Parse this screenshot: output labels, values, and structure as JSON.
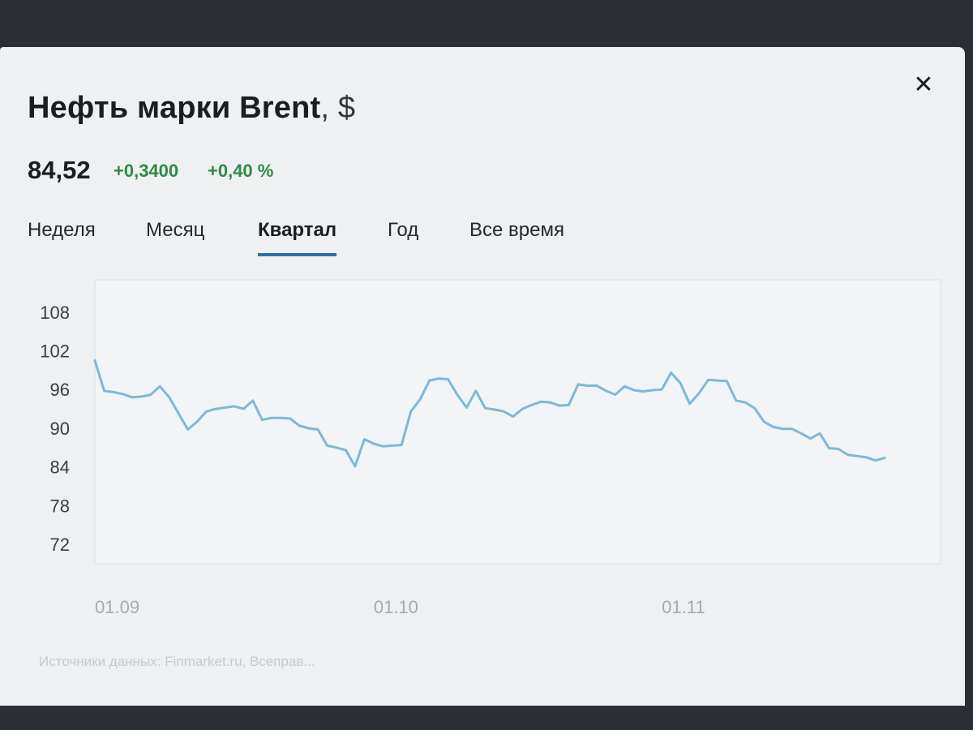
{
  "header": {
    "title": "Нефть марки Brent",
    "unit": ", $",
    "close_icon": "close-icon"
  },
  "quote": {
    "price": "84,52",
    "change_abs": "+0,3400",
    "change_pct": "+0,40 %",
    "positive_color": "#2d8a45"
  },
  "tabs": [
    {
      "label": "Неделя",
      "active": false
    },
    {
      "label": "Месяц",
      "active": false
    },
    {
      "label": "Квартал",
      "active": true
    },
    {
      "label": "Год",
      "active": false
    },
    {
      "label": "Все время",
      "active": false
    }
  ],
  "accent_color": "#2b6fb3",
  "line_color": "#7fb8d9",
  "footer": {
    "source": "Источники данных: Finmarket.ru, Всеправ..."
  },
  "chart_data": {
    "type": "line",
    "title": "",
    "xlabel": "",
    "ylabel": "",
    "ylim": [
      69,
      113
    ],
    "yticks": [
      "108",
      "102",
      "96",
      "90",
      "84",
      "78",
      "72"
    ],
    "ytick_values": [
      108,
      102,
      96,
      90,
      84,
      78,
      72
    ],
    "xticks": [
      "01.09",
      "01.10",
      "01.11"
    ],
    "xtick_days": [
      0,
      30,
      61
    ],
    "x_range_days": [
      0,
      91
    ],
    "grid": false,
    "series": [
      {
        "color": "#7fb8d9",
        "points": [
          [
            0,
            100.5
          ],
          [
            1,
            95.8
          ],
          [
            2,
            95.6
          ],
          [
            3,
            95.3
          ],
          [
            4,
            94.8
          ],
          [
            5,
            94.9
          ],
          [
            6,
            95.2
          ],
          [
            7,
            96.5
          ],
          [
            8,
            94.8
          ],
          [
            9,
            92.3
          ],
          [
            10,
            89.8
          ],
          [
            11,
            91.0
          ],
          [
            12,
            92.6
          ],
          [
            13,
            93.0
          ],
          [
            14,
            93.2
          ],
          [
            15,
            93.4
          ],
          [
            16,
            93.0
          ],
          [
            17,
            94.3
          ],
          [
            18,
            91.3
          ],
          [
            19,
            91.6
          ],
          [
            20,
            91.6
          ],
          [
            21,
            91.5
          ],
          [
            22,
            90.4
          ],
          [
            23,
            90.0
          ],
          [
            24,
            89.8
          ],
          [
            25,
            87.3
          ],
          [
            26,
            87.0
          ],
          [
            27,
            86.6
          ],
          [
            28,
            84.1
          ],
          [
            29,
            88.3
          ],
          [
            30,
            87.6
          ],
          [
            31,
            87.2
          ],
          [
            32,
            87.3
          ],
          [
            33,
            87.4
          ],
          [
            34,
            92.6
          ],
          [
            35,
            94.5
          ],
          [
            36,
            97.4
          ],
          [
            37,
            97.7
          ],
          [
            38,
            97.6
          ],
          [
            39,
            95.2
          ],
          [
            40,
            93.2
          ],
          [
            41,
            95.8
          ],
          [
            42,
            93.1
          ],
          [
            43,
            92.9
          ],
          [
            44,
            92.6
          ],
          [
            45,
            91.8
          ],
          [
            46,
            93.0
          ],
          [
            47,
            93.6
          ],
          [
            48,
            94.1
          ],
          [
            49,
            94.0
          ],
          [
            50,
            93.5
          ],
          [
            51,
            93.6
          ],
          [
            52,
            96.8
          ],
          [
            53,
            96.6
          ],
          [
            54,
            96.6
          ],
          [
            55,
            95.8
          ],
          [
            56,
            95.2
          ],
          [
            57,
            96.5
          ],
          [
            58,
            95.9
          ],
          [
            59,
            95.7
          ],
          [
            60,
            95.9
          ],
          [
            61,
            96.0
          ],
          [
            62,
            98.6
          ],
          [
            63,
            97.0
          ],
          [
            64,
            93.8
          ],
          [
            65,
            95.4
          ],
          [
            66,
            97.5
          ],
          [
            67,
            97.4
          ],
          [
            68,
            97.3
          ],
          [
            69,
            94.3
          ],
          [
            70,
            94.0
          ],
          [
            71,
            93.1
          ],
          [
            72,
            91.0
          ],
          [
            73,
            90.2
          ],
          [
            74,
            89.9
          ],
          [
            75,
            89.9
          ],
          [
            76,
            89.2
          ],
          [
            77,
            88.4
          ],
          [
            78,
            89.2
          ],
          [
            79,
            86.9
          ],
          [
            80,
            86.8
          ],
          [
            81,
            85.9
          ],
          [
            82,
            85.7
          ],
          [
            83,
            85.5
          ],
          [
            84,
            85.0
          ],
          [
            85,
            85.4
          ]
        ]
      }
    ]
  }
}
